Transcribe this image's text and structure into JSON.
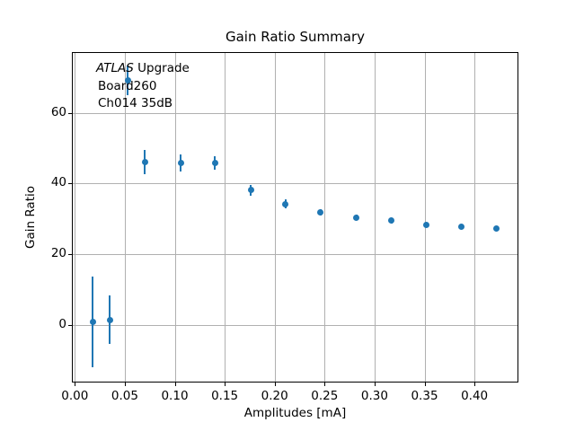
{
  "chart_data": {
    "type": "scatter",
    "title": "Gain Ratio Summary",
    "xlabel": "Amplitudes [mA]",
    "ylabel": "Gain Ratio",
    "xlim": [
      -0.003,
      0.444
    ],
    "ylim": [
      -16.4,
      77.2
    ],
    "xticks": [
      0.0,
      0.05,
      0.1,
      0.15,
      0.2,
      0.25,
      0.3,
      0.35,
      0.4
    ],
    "xtick_labels": [
      "0.00",
      "0.05",
      "0.10",
      "0.15",
      "0.20",
      "0.25",
      "0.30",
      "0.35",
      "0.40"
    ],
    "yticks": [
      0,
      20,
      40,
      60
    ],
    "ytick_labels": [
      "0",
      "20",
      "40",
      "60"
    ],
    "grid": true,
    "legend": false,
    "annotation": {
      "line1_italic": "ATLAS",
      "line1_rest": " Upgrade",
      "line2": "Board260",
      "line3": "Ch014 35dB"
    },
    "colors": {
      "marker": "#1f77b4",
      "grid": "#b0b0b0",
      "axes": "#000000",
      "background": "#ffffff"
    },
    "series": [
      {
        "name": "gain-ratio-vs-amplitude",
        "marker": "o",
        "x": [
          0.018,
          0.035,
          0.053,
          0.07,
          0.106,
          0.14,
          0.176,
          0.211,
          0.246,
          0.282,
          0.317,
          0.352,
          0.387,
          0.422
        ],
        "y": [
          0.8,
          1.4,
          69.2,
          46.0,
          45.8,
          45.7,
          38.1,
          34.2,
          31.8,
          30.3,
          29.4,
          28.3,
          27.7,
          27.3
        ],
        "yerr": [
          12.8,
          6.8,
          4.2,
          3.4,
          2.5,
          1.9,
          1.5,
          1.3,
          1.0,
          0.8,
          0.7,
          0.6,
          0.5,
          0.5
        ]
      }
    ]
  }
}
